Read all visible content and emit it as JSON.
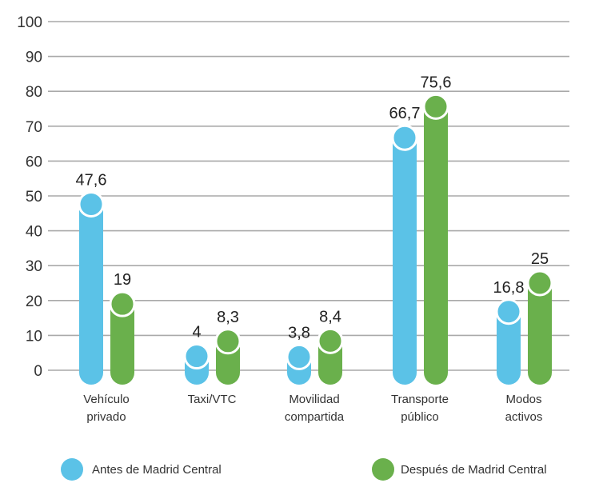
{
  "chart_data": {
    "type": "bar",
    "title": "",
    "xlabel": "",
    "ylabel": "",
    "ylim": [
      0,
      100
    ],
    "yticks": [
      "0",
      "10",
      "20",
      "30",
      "40",
      "50",
      "60",
      "70",
      "80",
      "90",
      "100"
    ],
    "categories": [
      [
        "Vehículo",
        "privado"
      ],
      [
        "Taxi/VTC"
      ],
      [
        "Movilidad",
        "compartida"
      ],
      [
        "Transporte",
        "público"
      ],
      [
        "Modos",
        "activos"
      ]
    ],
    "series": [
      {
        "name": "Antes de Madrid Central",
        "color": "#5bc2e7",
        "values": [
          47.6,
          4,
          3.8,
          66.7,
          16.8
        ],
        "labels": [
          "47,6",
          "4",
          "3,8",
          "66,7",
          "16,8"
        ]
      },
      {
        "name": "Después de Madrid Central",
        "color": "#6ab04c",
        "values": [
          19,
          8.3,
          8.4,
          75.6,
          25
        ],
        "labels": [
          "19",
          "8,3",
          "8,4",
          "75,6",
          "25"
        ]
      }
    ],
    "grid": true,
    "legend": "bottom"
  }
}
